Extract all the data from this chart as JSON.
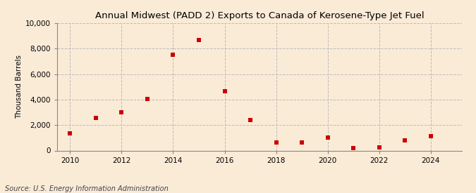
{
  "title": "Annual Midwest (PADD 2) Exports to Canada of Kerosene-Type Jet Fuel",
  "ylabel": "Thousand Barrels",
  "source": "Source: U.S. Energy Information Administration",
  "background_color": "#faebd7",
  "plot_background_color": "#faebd7",
  "marker_color": "#cc0000",
  "marker": "s",
  "marker_size": 4,
  "xlim": [
    2009.5,
    2025.2
  ],
  "ylim": [
    0,
    10000
  ],
  "yticks": [
    0,
    2000,
    4000,
    6000,
    8000,
    10000
  ],
  "xticks": [
    2010,
    2012,
    2014,
    2016,
    2018,
    2020,
    2022,
    2024
  ],
  "grid_color": "#bbbbbb",
  "grid_linestyle": "--",
  "years": [
    2010,
    2011,
    2012,
    2013,
    2014,
    2015,
    2016,
    2017,
    2018,
    2019,
    2020,
    2021,
    2022,
    2023,
    2024
  ],
  "values": [
    1350,
    2550,
    3000,
    4050,
    7500,
    8700,
    4650,
    2400,
    650,
    650,
    1000,
    200,
    250,
    800,
    1150
  ]
}
